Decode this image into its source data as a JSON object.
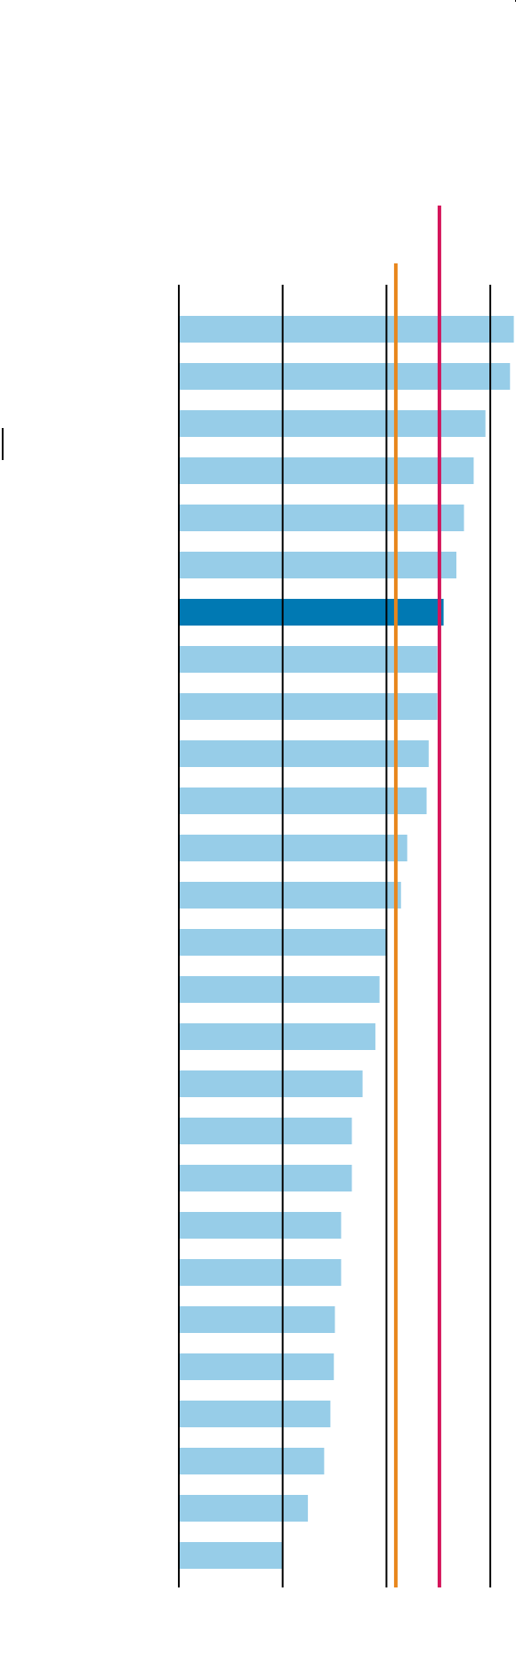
{
  "chart_data": {
    "type": "bar",
    "orientation": "horizontal",
    "title": "",
    "xlabel": "",
    "ylabel": "",
    "xlim": [
      0,
      100
    ],
    "grid": true,
    "gridlines": [
      0,
      30,
      60,
      90
    ],
    "categories": [
      "",
      "",
      "",
      "",
      "",
      "",
      "",
      "",
      "",
      "",
      "",
      "",
      "",
      "",
      "",
      "",
      "",
      "",
      "",
      "",
      "",
      "",
      "",
      "",
      "",
      "",
      ""
    ],
    "values": [
      96.8,
      95.7,
      88.6,
      85.2,
      82.4,
      80.2,
      76.5,
      74.7,
      74.7,
      72.2,
      71.6,
      66.0,
      64.2,
      59.9,
      58.0,
      56.8,
      53.1,
      50.0,
      50.0,
      46.9,
      46.9,
      45.1,
      44.8,
      43.8,
      42.0,
      37.3,
      30.2
    ],
    "highlight_index": 6,
    "reference_lines": [
      {
        "value": 62.7,
        "color": "#e8861c"
      },
      {
        "value": 75.3,
        "color": "#d4145a"
      }
    ],
    "colors": {
      "bar": "#97cde8",
      "highlight": "#0079b3",
      "grid": "#000000"
    }
  }
}
